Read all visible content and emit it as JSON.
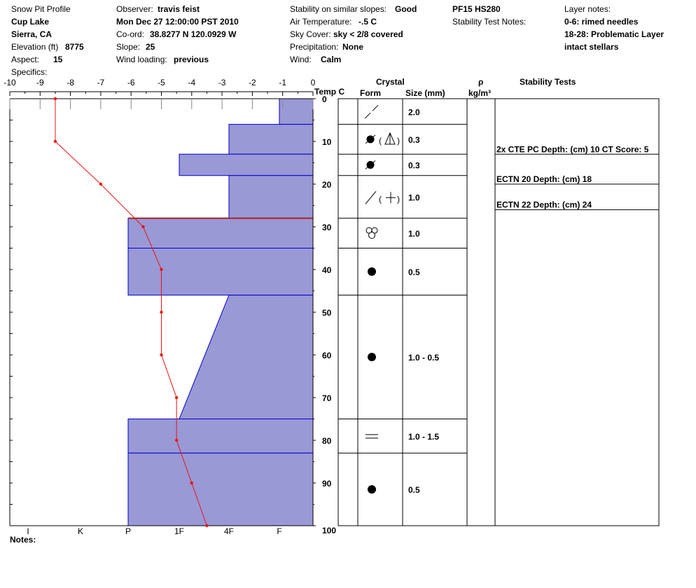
{
  "header": {
    "title": "Snow Pit Profile",
    "location": "Cup Lake",
    "region": "Sierra, CA",
    "elevation_label": "Elevation (ft)",
    "elevation_value": "8775",
    "aspect_label": "Aspect:",
    "aspect_value": "15",
    "specifics_label": "Specifics:",
    "observer_label": "Observer:",
    "observer_value": "travis feist",
    "datetime": "Mon Dec 27 12:00:00 PST 2010",
    "coord_label": "Co-ord:",
    "coord_value": "38.8277 N 120.0929 W",
    "slope_label": "Slope:",
    "slope_value": "25",
    "wind_loading_label": "Wind loading:",
    "wind_loading_value": "previous",
    "stability_label": "Stability on similar slopes:",
    "stability_value": "Good",
    "air_temp_label": "Air Temperature:",
    "air_temp_value": "-.5 C",
    "sky_label": "Sky Cover:",
    "sky_value": "sky < 2/8 covered",
    "precip_label": "Precipitation:",
    "precip_value": "None",
    "wind_label": "Wind:",
    "wind_value": "Calm",
    "pf_hs": "PF15 HS280",
    "stability_notes_label": "Stability Test Notes:",
    "layer_notes_label": "Layer notes:",
    "layer_note_1": "0-6: rimed needles",
    "layer_note_2": "18-28: Problematic Layer",
    "layer_note_3": "intact stellars",
    "notes_label": "Notes:"
  },
  "columns": {
    "temp_label": "Temp C",
    "crystal_label": "Crystal",
    "form_label": "Form",
    "size_label": "Size (mm)",
    "rho_label": "ρ",
    "density_unit": "kg/m³",
    "stability_tests_label": "Stability Tests"
  },
  "chart_data": {
    "type": "snow_profile",
    "temp_axis": {
      "ticks": [
        -10,
        -9,
        -8,
        -7,
        -6,
        -5,
        -4,
        -3,
        -2,
        -1,
        0
      ],
      "range": [
        -10,
        0
      ],
      "label": "Temp C"
    },
    "depth_axis": {
      "ticks": [
        0,
        10,
        20,
        30,
        40,
        50,
        60,
        70,
        80,
        90,
        100
      ],
      "range": [
        0,
        100
      ]
    },
    "hardness_axis": {
      "ticks": [
        "I",
        "K",
        "P",
        "1F",
        "4F",
        "F"
      ]
    },
    "temperature_profile": [
      {
        "depth": 0,
        "temp": -8.5
      },
      {
        "depth": 10,
        "temp": -8.5
      },
      {
        "depth": 20,
        "temp": -7.0
      },
      {
        "depth": 30,
        "temp": -5.6
      },
      {
        "depth": 40,
        "temp": -5.0
      },
      {
        "depth": 50,
        "temp": -5.0
      },
      {
        "depth": 60,
        "temp": -5.0
      },
      {
        "depth": 70,
        "temp": -4.5
      },
      {
        "depth": 80,
        "temp": -4.5
      },
      {
        "depth": 90,
        "temp": -4.0
      },
      {
        "depth": 100,
        "temp": -3.5
      }
    ],
    "layers": [
      {
        "top": 0,
        "bottom": 6,
        "hardness_top": "F",
        "hardness_bottom": "F",
        "form": "rimed-needles",
        "size": "2.0"
      },
      {
        "top": 6,
        "bottom": 13,
        "hardness_top": "4F",
        "hardness_bottom": "4F",
        "form": "rounded-faceted",
        "size": "0.3"
      },
      {
        "top": 13,
        "bottom": 18,
        "hardness_top": "1F",
        "hardness_bottom": "1F",
        "form": "rounded-partly",
        "size": "0.3"
      },
      {
        "top": 18,
        "bottom": 28,
        "hardness_top": "4F",
        "hardness_bottom": "4F",
        "form": "stellar",
        "size": "1.0"
      },
      {
        "top": 28,
        "bottom": 35,
        "hardness_top": "P",
        "hardness_bottom": "P",
        "form": "graupel-cluster",
        "size": "1.0"
      },
      {
        "top": 35,
        "bottom": 46,
        "hardness_top": "P",
        "hardness_bottom": "P",
        "form": "rounded",
        "size": "0.5"
      },
      {
        "top": 46,
        "bottom": 75,
        "hardness_top": "4F",
        "hardness_bottom": "1F",
        "form": "rounded",
        "size": "1.0 - 0.5"
      },
      {
        "top": 75,
        "bottom": 83,
        "hardness_top": "P",
        "hardness_bottom": "P",
        "form": "crust",
        "size": "1.0 - 1.5"
      },
      {
        "top": 83,
        "bottom": 100,
        "hardness_top": "P",
        "hardness_bottom": "P",
        "form": "rounded",
        "size": "0.5"
      }
    ],
    "stability_tests": [
      {
        "text": "2x CTE PC Depth: (cm) 10 CT Score: 5",
        "depth": 13
      },
      {
        "text": "ECTN 20   Depth: (cm) 18",
        "depth": 20
      },
      {
        "text": "ECTN 22   Depth: (cm) 24",
        "depth": 26
      }
    ],
    "colors": {
      "hardness_fill": "#9999d6",
      "hardness_stroke": "#0000cc",
      "temp_line": "#ee1111",
      "problem_line": "#aa2222"
    }
  }
}
